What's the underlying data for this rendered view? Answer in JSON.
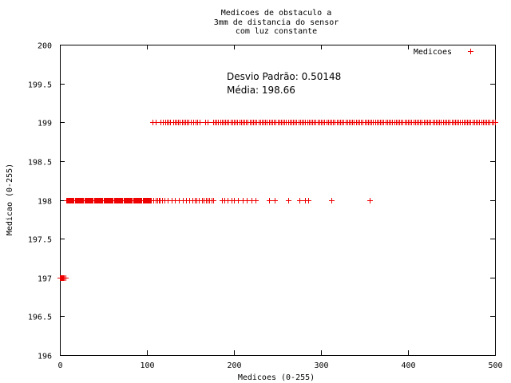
{
  "chart_data": {
    "type": "scatter",
    "title_lines": [
      "Medicoes de obstaculo a",
      "3mm de distancia do sensor",
      "com luz constante"
    ],
    "xlabel": "Medicoes (0-255)",
    "ylabel": "Medicao (0-255)",
    "xlim": [
      0,
      500
    ],
    "ylim": [
      196,
      200
    ],
    "xticks": [
      0,
      100,
      200,
      300,
      400,
      500
    ],
    "yticks": [
      196,
      196.5,
      197,
      197.5,
      198,
      198.5,
      199,
      199.5,
      200
    ],
    "grid": false,
    "legend_position": "top-right",
    "marker": "+",
    "color": "#ee0000",
    "annotations": [
      "Desvio Padrão: 0.50148",
      "Média: 198.66"
    ],
    "series": [
      {
        "name": "Medicoes",
        "segments": [
          {
            "y": 197,
            "x": [
              0,
              1,
              2,
              3,
              4,
              5,
              6
            ]
          },
          {
            "y": 198,
            "x": [
              7,
              8,
              9,
              10,
              11,
              12,
              13,
              14,
              15,
              16,
              17,
              18,
              19,
              20,
              21,
              22,
              23,
              24,
              25,
              26,
              27,
              28,
              29,
              30,
              31,
              32,
              33,
              34,
              35,
              36,
              37,
              38,
              39,
              40,
              41,
              42,
              43,
              44,
              45,
              46,
              47,
              48,
              49,
              50,
              51,
              52,
              53,
              54,
              55,
              56,
              57,
              58,
              59,
              60,
              61,
              62,
              63,
              64,
              65,
              66,
              67,
              68,
              69,
              70,
              71,
              72,
              73,
              74,
              75,
              76,
              77,
              78,
              79,
              80,
              81,
              82,
              83,
              84,
              85,
              86,
              87,
              88,
              89,
              90,
              91,
              92,
              93,
              94,
              95,
              96,
              97,
              98,
              99,
              100,
              101,
              102,
              103,
              104,
              105,
              107,
              110,
              112,
              114,
              115,
              117,
              120,
              124,
              128,
              132,
              137,
              141,
              145,
              149,
              152,
              155,
              157,
              160,
              163,
              165,
              168,
              170,
              172,
              174,
              176,
              186,
              189,
              193,
              197,
              200,
              205,
              210,
              215,
              220,
              225,
              240,
              247,
              262,
              275,
              282,
              285,
              312,
              356
            ]
          },
          {
            "y": 199,
            "x": [
              106,
              110,
              116,
              118,
              121,
              123,
              125,
              127,
              130,
              132,
              134,
              136,
              138,
              140,
              142,
              144,
              146,
              148,
              150,
              153,
              156,
              158,
              161,
              167,
              170,
              176,
              178,
              180,
              182,
              184,
              186,
              188,
              190,
              192,
              194,
              196,
              198,
              200,
              202,
              204,
              206,
              208,
              210,
              212,
              214,
              216,
              218,
              220,
              222,
              224,
              226,
              228,
              230,
              232,
              234,
              236,
              238,
              240,
              242,
              244,
              246,
              248,
              250,
              252,
              254,
              256,
              258,
              260,
              262,
              264,
              266,
              268,
              270,
              272,
              274,
              276,
              278,
              280,
              282,
              284,
              286,
              288,
              290,
              292,
              294,
              296,
              298,
              300,
              302,
              304,
              306,
              308,
              310,
              312,
              314,
              316,
              318,
              320,
              322,
              324,
              326,
              328,
              330,
              332,
              334,
              336,
              338,
              340,
              342,
              344,
              346,
              348,
              350,
              352,
              354,
              356,
              358,
              360,
              362,
              364,
              366,
              368,
              370,
              372,
              374,
              376,
              378,
              380,
              382,
              384,
              386,
              388,
              390,
              392,
              394,
              396,
              398,
              400,
              402,
              404,
              406,
              408,
              410,
              412,
              414,
              416,
              418,
              420,
              422,
              424,
              426,
              428,
              430,
              432,
              434,
              436,
              438,
              440,
              442,
              444,
              446,
              448,
              450,
              452,
              454,
              456,
              458,
              460,
              462,
              464,
              466,
              468,
              470,
              472,
              474,
              476,
              478,
              480,
              482,
              484,
              486,
              488,
              490,
              492,
              494,
              496,
              498,
              500
            ]
          }
        ]
      }
    ]
  }
}
